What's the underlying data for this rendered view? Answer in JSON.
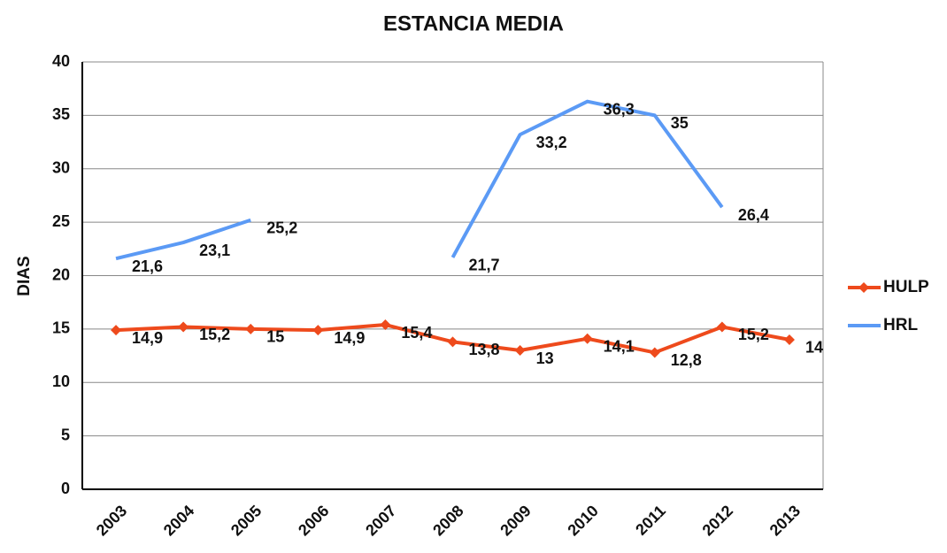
{
  "chart_data": {
    "type": "line",
    "title": "ESTANCIA MEDIA",
    "y_label": "DIAS",
    "categories": [
      "2003",
      "2004",
      "2005",
      "2006",
      "2007",
      "2008",
      "2009",
      "2010",
      "2011",
      "2012",
      "2013"
    ],
    "series": [
      {
        "name": "HULP",
        "color": "#ee4a1c",
        "marker": "diamond",
        "values": [
          14.9,
          15.2,
          15,
          14.9,
          15.4,
          13.8,
          13,
          14.1,
          12.8,
          15.2,
          14
        ],
        "value_labels": [
          "14,9",
          "15,2",
          "15",
          "14,9",
          "15,4",
          "13,8",
          "13",
          "14,1",
          "12,8",
          "15,2",
          "14"
        ]
      },
      {
        "name": "HRL",
        "color": "#5b9af5",
        "values": [
          21.6,
          23.1,
          25.2,
          null,
          null,
          21.7,
          33.2,
          36.3,
          35,
          26.4,
          null
        ],
        "value_labels": [
          "21,6",
          "23,1",
          "25,2",
          null,
          null,
          "21,7",
          "33,2",
          "36,3",
          "35",
          "26,4",
          null
        ]
      }
    ],
    "ylim": [
      0,
      40
    ],
    "yticks": [
      0,
      5,
      10,
      15,
      20,
      25,
      30,
      35,
      40
    ],
    "grid": true,
    "legend": "right"
  }
}
